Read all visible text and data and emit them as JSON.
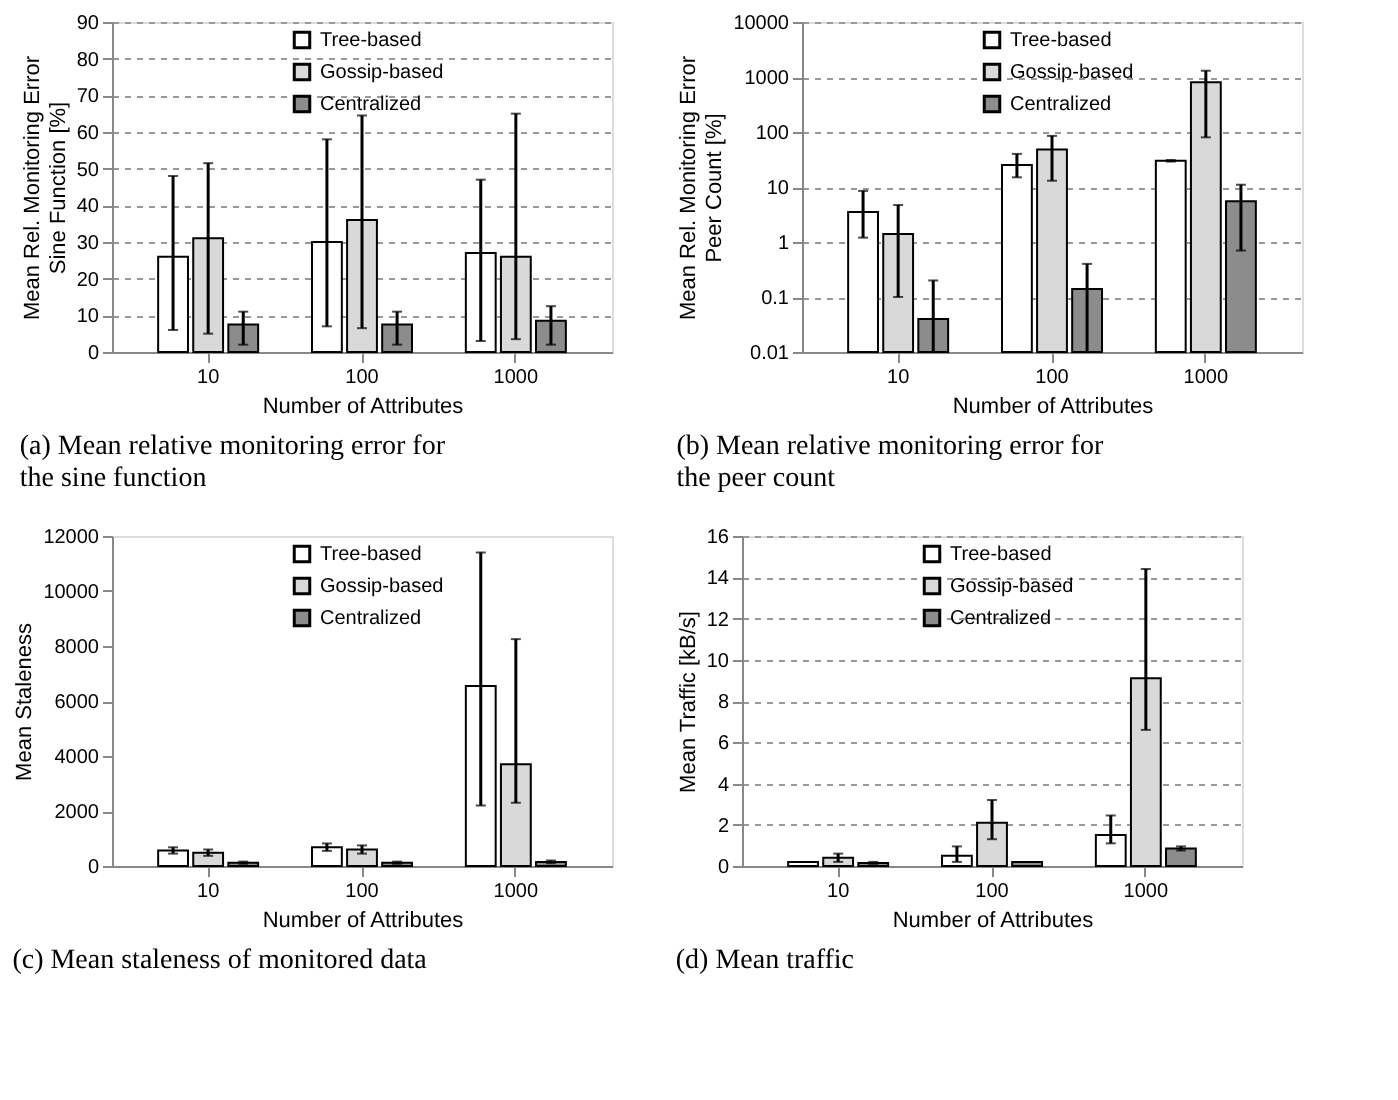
{
  "chart_data": [
    {
      "type": "bar",
      "categories": [
        "10",
        "100",
        "1000"
      ],
      "xlabel": "Number of Attributes",
      "ylabel": "Mean Rel. Monitoring Error\nSine Function [%]",
      "ylim": [
        0,
        90
      ],
      "yticks": [
        0,
        10,
        20,
        30,
        40,
        50,
        60,
        70,
        80,
        90
      ],
      "grid": "y",
      "legend": "top right",
      "annotations": [
        "(a) Mean relative monitoring error for the sine function"
      ],
      "series": [
        {
          "name": "Tree-based",
          "color": "#ffffff",
          "values": [
            26,
            30,
            27
          ],
          "errors": [
            [
              6,
              48
            ],
            [
              7,
              58
            ],
            [
              3,
              47
            ]
          ]
        },
        {
          "name": "Gossip-based",
          "color": "#d9d9d9",
          "values": [
            31,
            36,
            26
          ],
          "errors": [
            [
              5,
              51.5
            ],
            [
              6.5,
              64.5
            ],
            [
              3.5,
              65
            ]
          ]
        },
        {
          "name": "Centralized",
          "color": "#8c8c8c",
          "values": [
            7.5,
            7.5,
            8.5
          ],
          "errors": [
            [
              2,
              11
            ],
            [
              2,
              11
            ],
            [
              2,
              12.5
            ]
          ]
        }
      ]
    },
    {
      "type": "bar",
      "categories": [
        "10",
        "100",
        "1000"
      ],
      "xlabel": "Number of Attributes",
      "ylabel": "Mean Rel. Monitoring Error\nPeer Count [%]",
      "log": "y",
      "ylim": [
        0.01,
        10000
      ],
      "yticks": [
        0.01,
        0.1,
        1,
        10,
        100,
        1000,
        10000
      ],
      "grid": "y",
      "legend": "top right",
      "annotations": [
        "(b) Mean relative monitoring error for the peer count"
      ],
      "series": [
        {
          "name": "Tree-based",
          "color": "#ffffff",
          "values": [
            3.5,
            25,
            30
          ],
          "errors": [
            [
              1.2,
              8.5
            ],
            [
              15,
              40
            ],
            [
              29,
              31
            ]
          ]
        },
        {
          "name": "Gossip-based",
          "color": "#d9d9d9",
          "values": [
            1.4,
            48,
            800
          ],
          "errors": [
            [
              0.1,
              4.7
            ],
            [
              13,
              85
            ],
            [
              80,
              1300
            ]
          ]
        },
        {
          "name": "Centralized",
          "color": "#8c8c8c",
          "values": [
            0.04,
            0.14,
            5.5
          ],
          "errors": [
            [
              0.01,
              0.2
            ],
            [
              0.01,
              0.4
            ],
            [
              0.7,
              11
            ]
          ]
        }
      ]
    },
    {
      "type": "bar",
      "categories": [
        "10",
        "100",
        "1000"
      ],
      "xlabel": "Number of Attributes",
      "ylabel": "Mean Staleness",
      "ylim": [
        0,
        12000
      ],
      "yticks": [
        0,
        2000,
        4000,
        6000,
        8000,
        10000,
        12000
      ],
      "legend": "top right",
      "annotations": [
        "(c) Mean staleness of monitored data"
      ],
      "series": [
        {
          "name": "Tree-based",
          "color": "#ffffff",
          "values": [
            560,
            680,
            6550
          ],
          "errors": [
            [
              450,
              680
            ],
            [
              550,
              820
            ],
            [
              2200,
              11400
            ]
          ]
        },
        {
          "name": "Gossip-based",
          "color": "#d9d9d9",
          "values": [
            480,
            600,
            3700
          ],
          "errors": [
            [
              370,
              600
            ],
            [
              450,
              750
            ],
            [
              2300,
              8250
            ]
          ]
        },
        {
          "name": "Centralized",
          "color": "#8c8c8c",
          "values": [
            120,
            120,
            150
          ],
          "errors": [
            [
              80,
              160
            ],
            [
              80,
              160
            ],
            [
              100,
              200
            ]
          ]
        }
      ]
    },
    {
      "type": "bar",
      "categories": [
        "10",
        "100",
        "1000"
      ],
      "xlabel": "Number of Attributes",
      "ylabel": "Mean Traffic [kB/s]",
      "ylim": [
        0,
        16
      ],
      "yticks": [
        0,
        2,
        4,
        6,
        8,
        10,
        12,
        14,
        16
      ],
      "grid": "y",
      "legend": "top right",
      "annotations": [
        "(d) Mean traffic"
      ],
      "series": [
        {
          "name": "Tree-based",
          "color": "#ffffff",
          "values": [
            0.2,
            0.5,
            1.5
          ],
          "errors": [
            null,
            [
              0.2,
              0.95
            ],
            [
              1.1,
              2.45
            ]
          ]
        },
        {
          "name": "Gossip-based",
          "color": "#d9d9d9",
          "values": [
            0.4,
            2.1,
            9.1
          ],
          "errors": [
            [
              0.2,
              0.6
            ],
            [
              1.3,
              3.2
            ],
            [
              6.6,
              14.4
            ]
          ]
        },
        {
          "name": "Centralized",
          "color": "#8c8c8c",
          "values": [
            0.15,
            0.2,
            0.85
          ],
          "errors": [
            [
              0.1,
              0.2
            ],
            null,
            [
              0.75,
              0.95
            ]
          ]
        }
      ]
    }
  ]
}
